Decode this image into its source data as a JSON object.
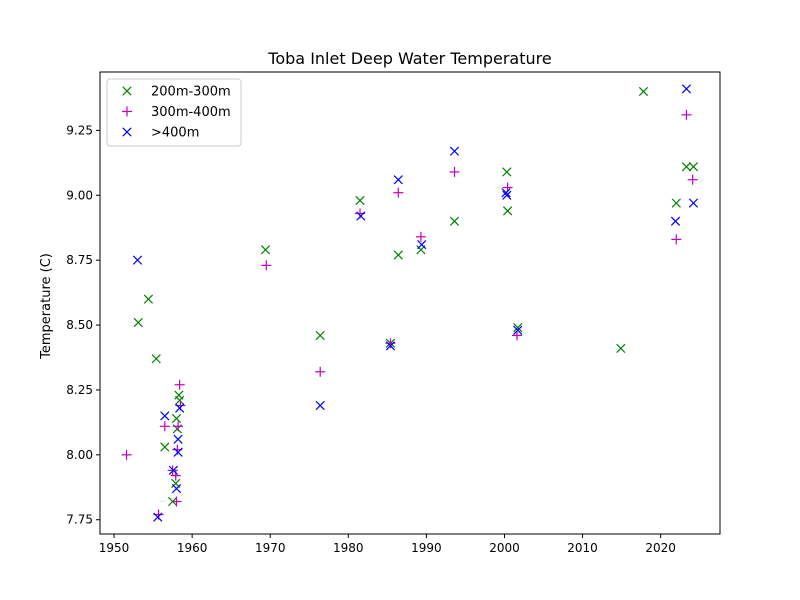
{
  "chart_data": {
    "type": "scatter",
    "title": "Toba Inlet Deep Water Temperature",
    "xlabel": "",
    "ylabel": "Temperature (C)",
    "xlim": [
      1948.2,
      2027.6
    ],
    "ylim": [
      7.695,
      9.475
    ],
    "xticks": [
      1950,
      1960,
      1970,
      1980,
      1990,
      2000,
      2010,
      2020
    ],
    "yticks": [
      7.75,
      8.0,
      8.25,
      8.5,
      8.75,
      9.0,
      9.25
    ],
    "ytick_labels": [
      "7.75",
      "8.00",
      "8.25",
      "8.50",
      "8.75",
      "9.00",
      "9.25"
    ],
    "grid": false,
    "legend_position": "top-left",
    "series": [
      {
        "name": "200m-300m",
        "color": "#008000",
        "marker": "x",
        "points": [
          [
            1953.1,
            8.51
          ],
          [
            1954.4,
            8.6
          ],
          [
            1955.4,
            8.37
          ],
          [
            1956.5,
            8.03
          ],
          [
            1957.5,
            7.82
          ],
          [
            1957.9,
            7.89
          ],
          [
            1958.0,
            8.14
          ],
          [
            1958.1,
            8.1
          ],
          [
            1958.3,
            8.23
          ],
          [
            1958.4,
            8.21
          ],
          [
            1969.4,
            8.79
          ],
          [
            1976.4,
            8.46
          ],
          [
            1981.5,
            8.98
          ],
          [
            1985.4,
            8.43
          ],
          [
            1986.4,
            8.77
          ],
          [
            1989.3,
            8.79
          ],
          [
            1993.6,
            8.9
          ],
          [
            2000.3,
            9.09
          ],
          [
            2000.4,
            8.94
          ],
          [
            2001.7,
            8.49
          ],
          [
            2014.9,
            8.41
          ],
          [
            2017.8,
            9.4
          ],
          [
            2022.0,
            8.97
          ],
          [
            2023.3,
            9.11
          ],
          [
            2024.2,
            9.11
          ]
        ]
      },
      {
        "name": "300m-400m",
        "color": "#bf00bf",
        "marker": "+",
        "points": [
          [
            1951.6,
            8.0
          ],
          [
            1955.7,
            7.77
          ],
          [
            1956.5,
            8.11
          ],
          [
            1957.5,
            7.94
          ],
          [
            1957.9,
            7.92
          ],
          [
            1958.0,
            7.82
          ],
          [
            1958.1,
            8.02
          ],
          [
            1958.2,
            8.11
          ],
          [
            1958.4,
            8.27
          ],
          [
            1958.5,
            8.19
          ],
          [
            1969.5,
            8.73
          ],
          [
            1976.4,
            8.32
          ],
          [
            1981.5,
            8.93
          ],
          [
            1985.4,
            8.43
          ],
          [
            1986.4,
            9.01
          ],
          [
            1989.3,
            8.84
          ],
          [
            1993.6,
            9.09
          ],
          [
            2000.4,
            9.03
          ],
          [
            2001.6,
            8.46
          ],
          [
            2022.0,
            8.83
          ],
          [
            2023.3,
            9.31
          ],
          [
            2024.1,
            9.06
          ]
        ]
      },
      {
        "name": ">400m",
        "color": "#0000ff",
        "marker": "x",
        "points": [
          [
            1953.0,
            8.75
          ],
          [
            1955.6,
            7.76
          ],
          [
            1956.5,
            8.15
          ],
          [
            1957.6,
            7.94
          ],
          [
            1958.0,
            7.87
          ],
          [
            1958.2,
            8.06
          ],
          [
            1958.2,
            8.01
          ],
          [
            1958.4,
            8.18
          ],
          [
            1976.4,
            8.19
          ],
          [
            1981.6,
            8.92
          ],
          [
            1985.4,
            8.42
          ],
          [
            1986.4,
            9.06
          ],
          [
            1989.4,
            8.81
          ],
          [
            1993.6,
            9.17
          ],
          [
            2000.2,
            9.01
          ],
          [
            2000.3,
            9.0
          ],
          [
            2001.7,
            8.48
          ],
          [
            2021.9,
            8.9
          ],
          [
            2023.3,
            9.41
          ],
          [
            2024.2,
            8.97
          ]
        ]
      }
    ]
  }
}
